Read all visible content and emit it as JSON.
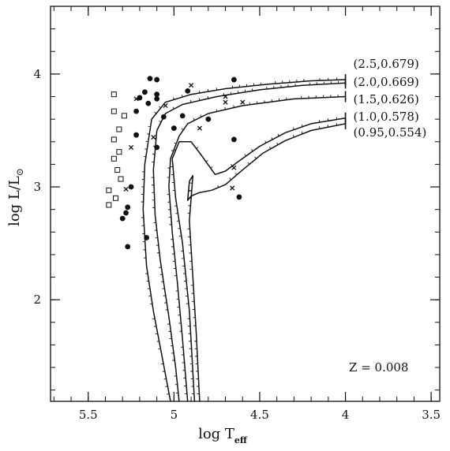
{
  "chart_data": {
    "type": "line",
    "xlabel": "log T",
    "xlabel_sub": "eff",
    "ylabel": "log L/L",
    "ylabel_sub": "⊙",
    "annotation": "Z = 0.008",
    "x_reversed": true,
    "xlim": [
      5.72,
      3.45
    ],
    "ylim": [
      1.1,
      4.6
    ],
    "x_ticks": [
      5.5,
      5,
      4.5,
      4,
      3.5
    ],
    "x_tick_labels": [
      "5.5",
      "5",
      "4.5",
      "4",
      "3.5"
    ],
    "y_ticks": [
      2,
      3,
      4
    ],
    "y_tick_labels": [
      "2",
      "3",
      "4"
    ],
    "series": [
      {
        "name": "(2.5,0.679)",
        "points": [
          [
            4.0,
            3.95
          ],
          [
            4.2,
            3.94
          ],
          [
            4.45,
            3.91
          ],
          [
            4.7,
            3.87
          ],
          [
            4.9,
            3.82
          ],
          [
            5.05,
            3.75
          ],
          [
            5.13,
            3.6
          ],
          [
            5.17,
            3.2
          ],
          [
            5.18,
            2.8
          ],
          [
            5.16,
            2.3
          ],
          [
            5.12,
            1.9
          ],
          [
            5.07,
            1.5
          ],
          [
            5.02,
            1.1
          ]
        ]
      },
      {
        "name": "(2.0,0.669)",
        "points": [
          [
            4.0,
            3.92
          ],
          [
            4.25,
            3.9
          ],
          [
            4.5,
            3.86
          ],
          [
            4.75,
            3.8
          ],
          [
            4.95,
            3.73
          ],
          [
            5.05,
            3.65
          ],
          [
            5.1,
            3.5
          ],
          [
            5.12,
            3.15
          ],
          [
            5.11,
            2.75
          ],
          [
            5.08,
            2.35
          ],
          [
            5.03,
            1.85
          ],
          [
            4.99,
            1.4
          ],
          [
            4.97,
            1.1
          ]
        ]
      },
      {
        "name": "(1.5,0.626)",
        "points": [
          [
            4.0,
            3.8
          ],
          [
            4.3,
            3.78
          ],
          [
            4.6,
            3.72
          ],
          [
            4.8,
            3.65
          ],
          [
            4.92,
            3.56
          ],
          [
            4.97,
            3.45
          ],
          [
            5.02,
            3.25
          ],
          [
            5.03,
            3.0
          ],
          [
            5.01,
            2.6
          ],
          [
            4.98,
            2.15
          ],
          [
            4.95,
            1.65
          ],
          [
            4.92,
            1.1
          ]
        ]
      },
      {
        "name": "(1.0,0.578)",
        "points": [
          [
            4.0,
            3.61
          ],
          [
            4.2,
            3.56
          ],
          [
            4.35,
            3.48
          ],
          [
            4.5,
            3.36
          ],
          [
            4.62,
            3.23
          ],
          [
            4.7,
            3.14
          ],
          [
            4.76,
            3.11
          ],
          [
            4.84,
            3.28
          ],
          [
            4.9,
            3.4
          ],
          [
            4.97,
            3.4
          ],
          [
            5.01,
            3.25
          ],
          [
            4.99,
            2.9
          ],
          [
            4.95,
            2.5
          ],
          [
            4.91,
            1.9
          ],
          [
            4.88,
            1.1
          ]
        ]
      },
      {
        "name": "(0.95,0.554)",
        "points": [
          [
            4.0,
            3.56
          ],
          [
            4.2,
            3.5
          ],
          [
            4.35,
            3.41
          ],
          [
            4.48,
            3.3
          ],
          [
            4.6,
            3.15
          ],
          [
            4.7,
            3.02
          ],
          [
            4.78,
            2.97
          ],
          [
            4.85,
            2.95
          ],
          [
            4.9,
            2.92
          ],
          [
            4.92,
            2.88
          ],
          [
            4.91,
            3.05
          ],
          [
            4.89,
            3.1
          ],
          [
            4.91,
            2.7
          ],
          [
            4.89,
            2.2
          ],
          [
            4.87,
            1.7
          ],
          [
            4.85,
            1.1
          ]
        ]
      }
    ],
    "filled_circles": [
      [
        5.14,
        3.96
      ],
      [
        5.17,
        3.84
      ],
      [
        5.1,
        3.95
      ],
      [
        5.2,
        3.79
      ],
      [
        5.15,
        3.74
      ],
      [
        5.1,
        3.82
      ],
      [
        5.1,
        3.78
      ],
      [
        5.22,
        3.67
      ],
      [
        5.06,
        3.62
      ],
      [
        4.95,
        3.63
      ],
      [
        5.0,
        3.52
      ],
      [
        4.8,
        3.6
      ],
      [
        4.65,
        3.95
      ],
      [
        4.92,
        3.85
      ],
      [
        4.65,
        3.42
      ],
      [
        5.22,
        3.46
      ],
      [
        5.1,
        3.35
      ],
      [
        5.25,
        3.0
      ],
      [
        5.27,
        2.82
      ],
      [
        5.28,
        2.77
      ],
      [
        5.3,
        2.72
      ],
      [
        4.62,
        2.91
      ],
      [
        5.27,
        2.47
      ],
      [
        5.16,
        2.55
      ]
    ],
    "crosses": [
      [
        5.22,
        3.78
      ],
      [
        4.7,
        3.8
      ],
      [
        4.7,
        3.75
      ],
      [
        4.9,
        3.9
      ],
      [
        4.85,
        3.52
      ],
      [
        5.12,
        3.44
      ],
      [
        4.65,
        3.17
      ],
      [
        5.25,
        3.35
      ],
      [
        5.28,
        2.98
      ],
      [
        4.66,
        2.99
      ],
      [
        5.05,
        3.72
      ],
      [
        4.6,
        3.75
      ]
    ],
    "open_squares": [
      [
        5.35,
        3.82
      ],
      [
        5.35,
        3.67
      ],
      [
        5.32,
        3.51
      ],
      [
        5.32,
        3.31
      ],
      [
        5.35,
        3.42
      ],
      [
        5.33,
        3.15
      ],
      [
        5.35,
        3.25
      ],
      [
        5.34,
        2.9
      ],
      [
        5.38,
        2.97
      ],
      [
        5.38,
        2.84
      ],
      [
        5.29,
        3.63
      ],
      [
        5.31,
        3.07
      ]
    ]
  }
}
